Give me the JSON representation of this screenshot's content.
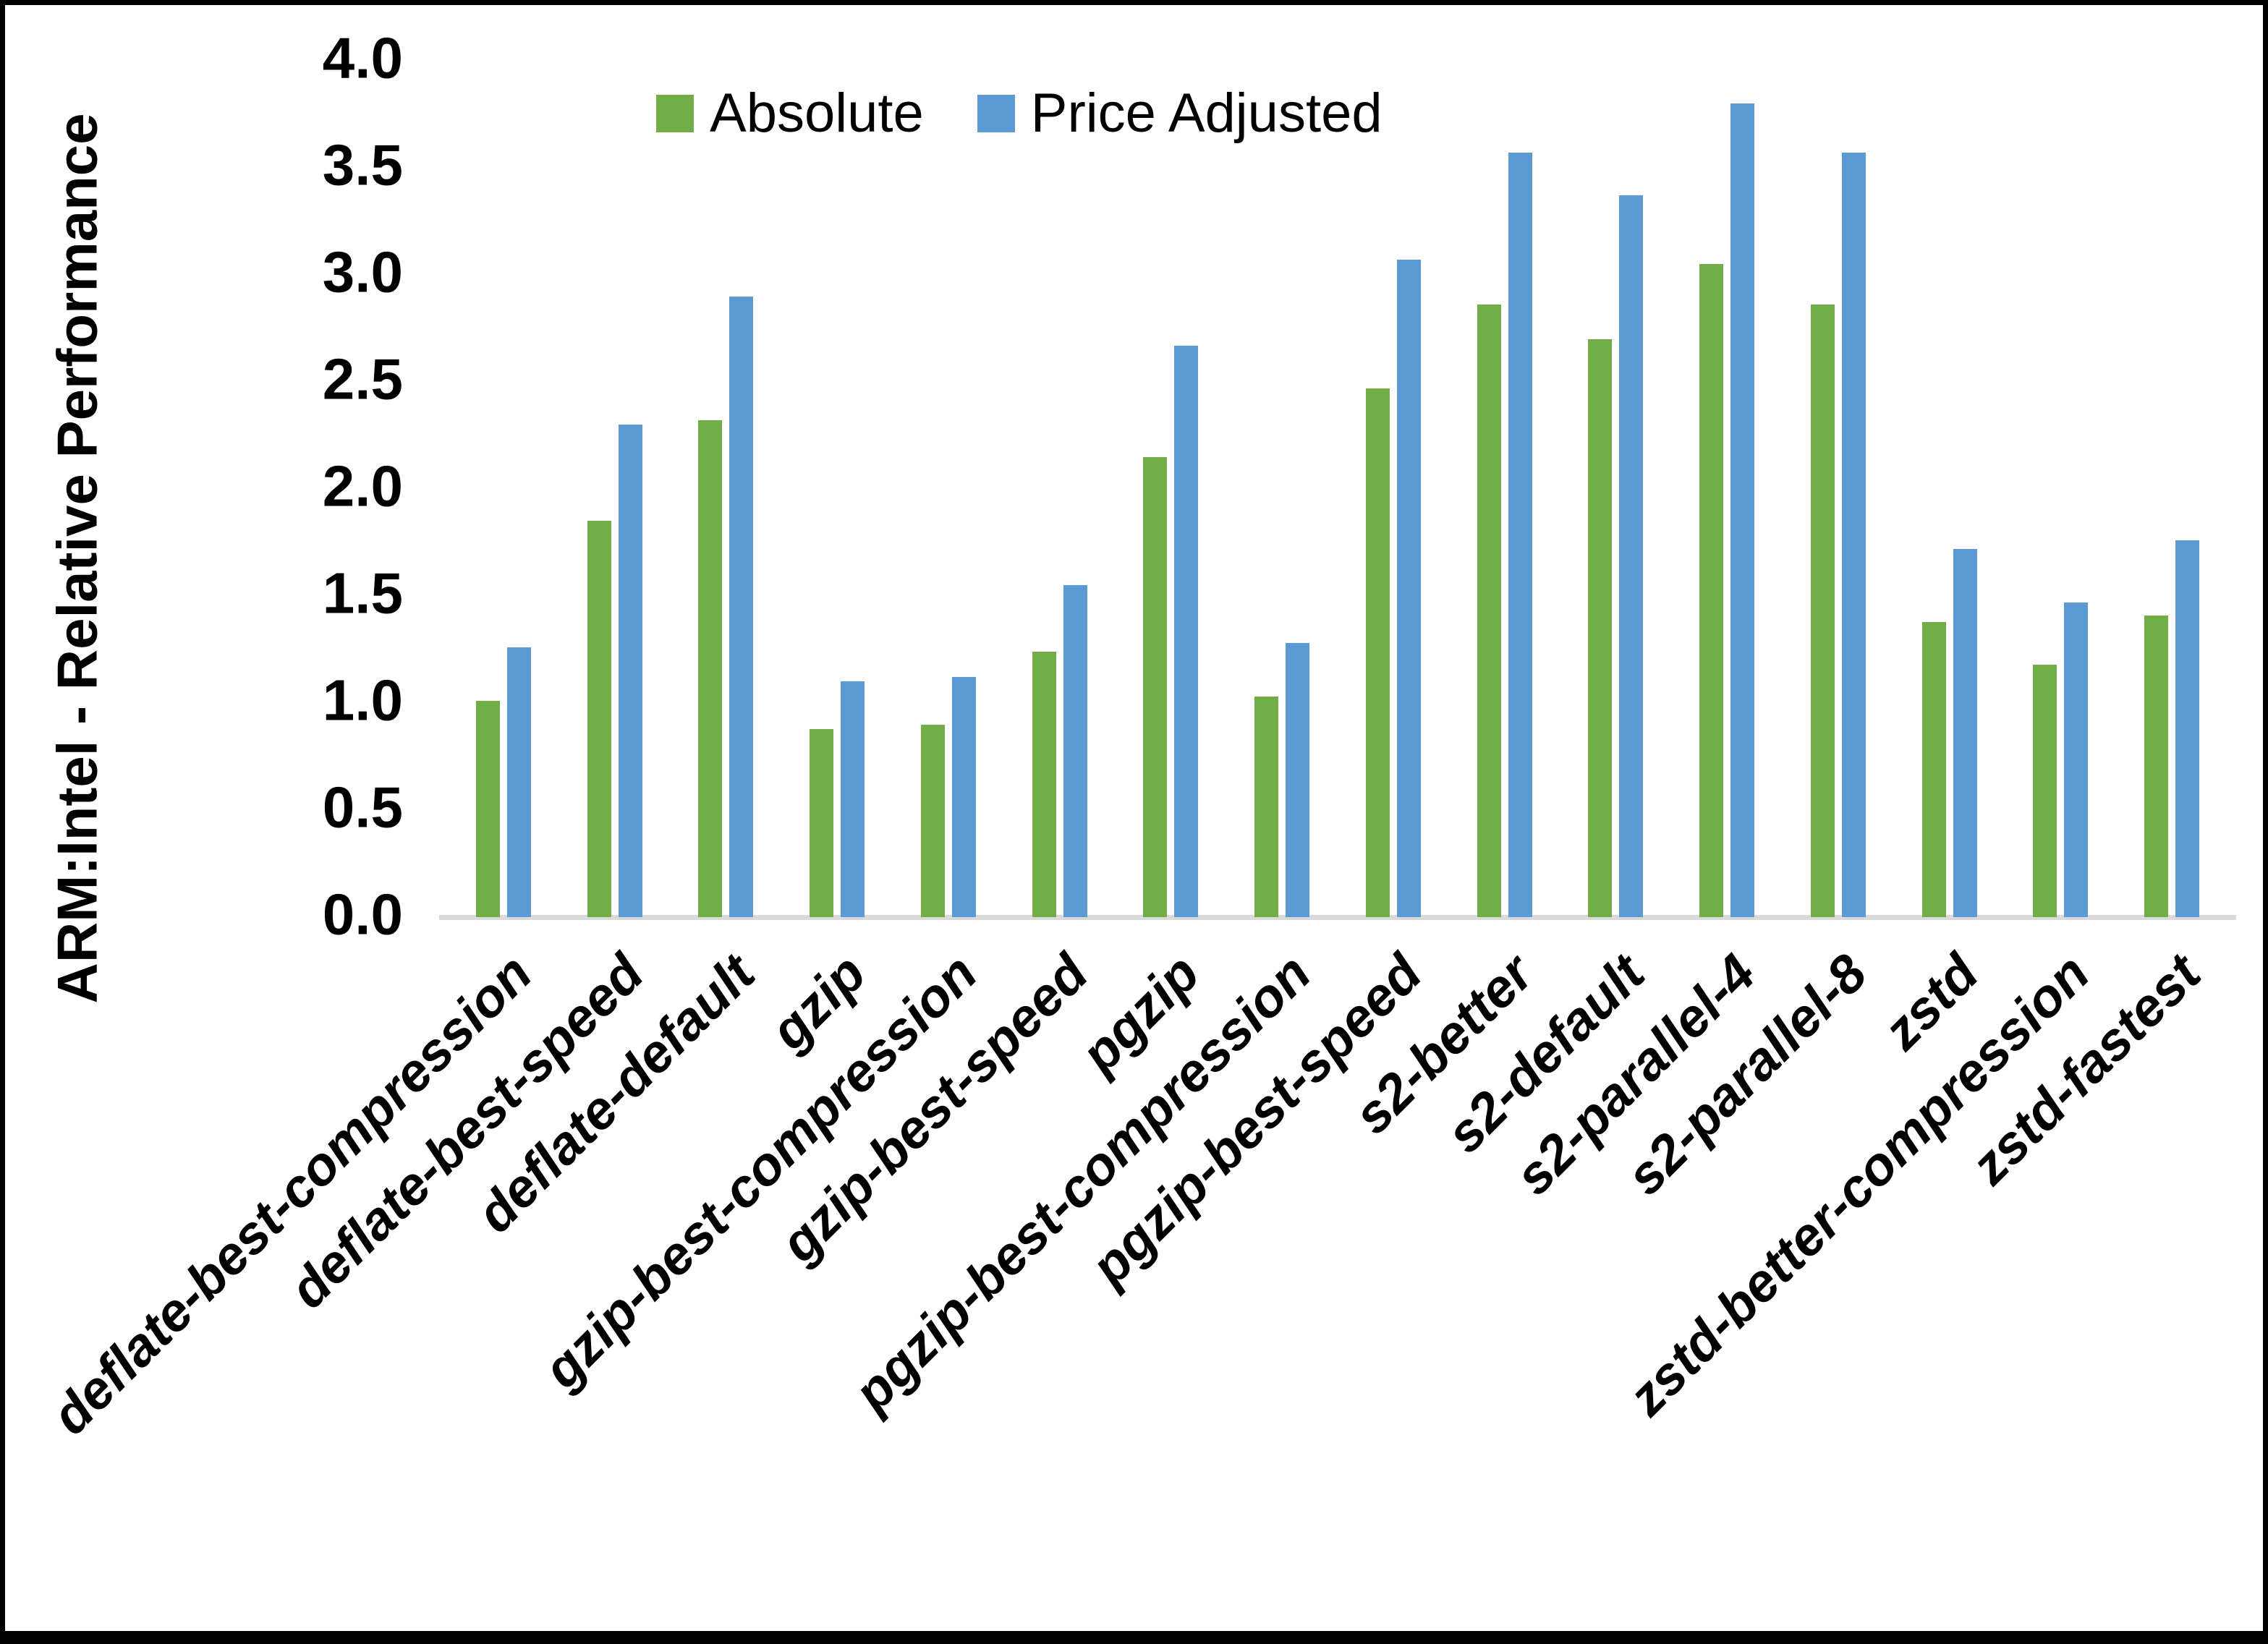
{
  "chart_data": {
    "type": "bar",
    "ylabel": "ARM:Intel - Relative Performance",
    "xlabel": "",
    "ylim": [
      0,
      4
    ],
    "yticks": [
      0,
      0.5,
      1,
      1.5,
      2,
      2.5,
      3,
      3.5,
      4
    ],
    "ytick_labels": [
      "0.0",
      "0.5",
      "1.0",
      "1.5",
      "2.0",
      "2.5",
      "3.0",
      "3.5",
      "4.0"
    ],
    "grid": false,
    "legend_position": "top-center",
    "categories": [
      "deflate-best-compression",
      "deflate-best-speed",
      "deflate-default",
      "gzip",
      "gzip-best-compression",
      "gzip-best-speed",
      "pgzip",
      "pgzip-best-compression",
      "pgzip-best-speed",
      "s2-better",
      "s2-default",
      "s2-parallel-4",
      "s2-parallel-8",
      "zstd",
      "zstd-better-compression",
      "zstd-fastest"
    ],
    "series": [
      {
        "name": "Absolute",
        "color": "#70AD47",
        "values": [
          1.01,
          1.85,
          2.32,
          0.88,
          0.9,
          1.24,
          2.15,
          1.03,
          2.47,
          2.86,
          2.7,
          3.05,
          2.86,
          1.38,
          1.18,
          1.41
        ]
      },
      {
        "name": "Price Adjusted",
        "color": "#5B9BD5",
        "values": [
          1.26,
          2.3,
          2.9,
          1.1,
          1.12,
          1.55,
          2.67,
          1.28,
          3.07,
          3.57,
          3.37,
          3.8,
          3.57,
          1.72,
          1.47,
          1.76
        ]
      }
    ],
    "colors": {
      "axis_line": "#D9D9D9",
      "text": "#000000",
      "background": "#FFFFFF",
      "frame_border": "#000000"
    }
  }
}
